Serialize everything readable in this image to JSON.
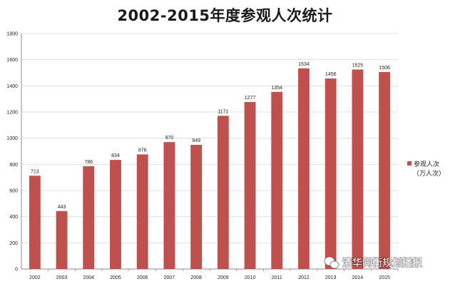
{
  "chart_data": {
    "type": "bar",
    "title": "2002-2015年度参观人次统计",
    "categories": [
      "2002",
      "2003",
      "2004",
      "2005",
      "2006",
      "2007",
      "2008",
      "2009",
      "2010",
      "2011",
      "2012",
      "2013",
      "2014",
      "2015"
    ],
    "series": [
      {
        "name": "参观人次\n（万人次）",
        "values": [
          713,
          443,
          786,
          834,
          876,
          970,
          949,
          1171,
          1277,
          1354,
          1534,
          1456,
          1525,
          1506
        ]
      }
    ],
    "data_labels": true,
    "ylim": [
      0,
      1800
    ],
    "yticks": [
      0,
      200,
      400,
      600,
      800,
      1000,
      1200,
      1400,
      1600,
      1800
    ],
    "grid": true,
    "legend_position": "right",
    "legend": {
      "line1": "参观人次",
      "line2": "（万人次）"
    },
    "xlabel": "",
    "ylabel": ""
  },
  "colors": {
    "bar": "#c0504d",
    "grid": "#d9d9d9",
    "axis": "#8c8c8c"
  },
  "watermark": {
    "text": "清华同衡规划播报",
    "icon": "wechat-icon"
  }
}
